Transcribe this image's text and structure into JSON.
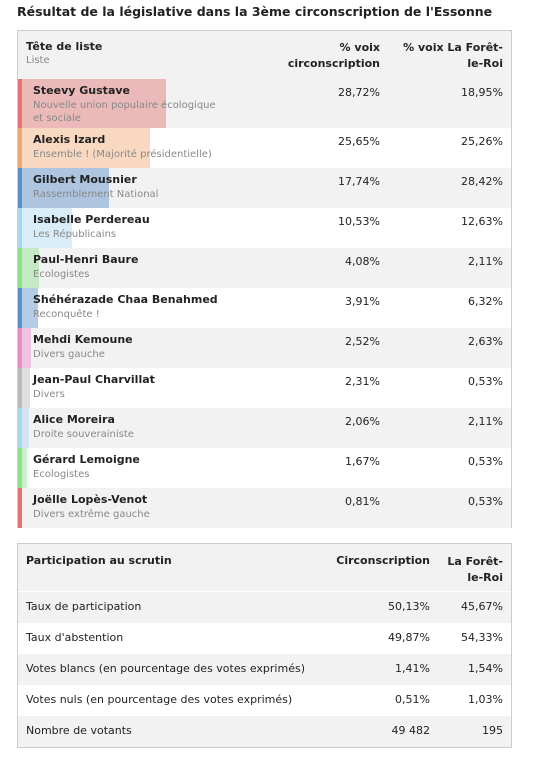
{
  "title": "Résultat de la législative dans la 3ème circonscription de l'Essonne",
  "table": {
    "header": {
      "name": "Tête de liste",
      "sub": "Liste",
      "col1": "% voix circonscription",
      "col2": "% voix La Forêt-le-Roi"
    },
    "rows": [
      {
        "name": "Steevy Gustave",
        "party": "Nouvelle union populaire écologique et sociale",
        "color": "#e57373",
        "circ": {
          "value": 28.72,
          "label": "28,72%"
        },
        "commune": "18,95%"
      },
      {
        "name": "Alexis Izard",
        "party": "Ensemble ! (Majorité présidentielle)",
        "color": "#f0a875",
        "circ": {
          "value": 25.65,
          "label": "25,65%"
        },
        "commune": "25,26%"
      },
      {
        "name": "Gilbert Mousnier",
        "party": "Rassemblement National",
        "color": "#5b8fc7",
        "circ": {
          "value": 17.74,
          "label": "17,74%"
        },
        "commune": "28,42%"
      },
      {
        "name": "Isabelle Perdereau",
        "party": "Les Républicains",
        "color": "#a8d8f0",
        "circ": {
          "value": 10.53,
          "label": "10,53%"
        },
        "commune": "12,63%"
      },
      {
        "name": "Paul-Henri Baure",
        "party": "Ecologistes",
        "color": "#8fe08a",
        "circ": {
          "value": 4.08,
          "label": "4,08%"
        },
        "commune": "2,11%"
      },
      {
        "name": "Shéhérazade Chaa Benahmed",
        "party": "Reconquête !",
        "color": "#5b8fc7",
        "circ": {
          "value": 3.91,
          "label": "3,91%"
        },
        "commune": "6,32%"
      },
      {
        "name": "Mehdi Kemoune",
        "party": "Divers gauche",
        "color": "#e88cc8",
        "circ": {
          "value": 2.52,
          "label": "2,52%"
        },
        "commune": "2,63%"
      },
      {
        "name": "Jean-Paul Charvillat",
        "party": "Divers",
        "color": "#bbbbbb",
        "circ": {
          "value": 2.31,
          "label": "2,31%"
        },
        "commune": "0,53%"
      },
      {
        "name": "Alice Moreira",
        "party": "Droite souverainiste",
        "color": "#a8d8f0",
        "circ": {
          "value": 2.06,
          "label": "2,06%"
        },
        "commune": "2,11%"
      },
      {
        "name": "Gérard Lemoigne",
        "party": "Ecologistes",
        "color": "#8fe08a",
        "circ": {
          "value": 1.67,
          "label": "1,67%"
        },
        "commune": "0,53%"
      },
      {
        "name": "Joëlle Lopès-Venot",
        "party": "Divers extrême gauche",
        "color": "#e57373",
        "circ": {
          "value": 0.81,
          "label": "0,81%"
        },
        "commune": "0,53%"
      }
    ]
  },
  "participation": {
    "header": [
      "Participation au scrutin",
      "Circonscription",
      "La Forêt-le-Roi"
    ],
    "rows": [
      [
        "Taux de participation",
        "50,13%",
        "45,67%"
      ],
      [
        "Taux d'abstention",
        "49,87%",
        "54,33%"
      ],
      [
        "Votes blancs (en pourcentage des votes exprimés)",
        "1,41%",
        "1,54%"
      ],
      [
        "Votes nuls (en pourcentage des votes exprimés)",
        "0,51%",
        "1,03%"
      ],
      [
        "Nombre de votants",
        "49 482",
        "195"
      ]
    ]
  }
}
